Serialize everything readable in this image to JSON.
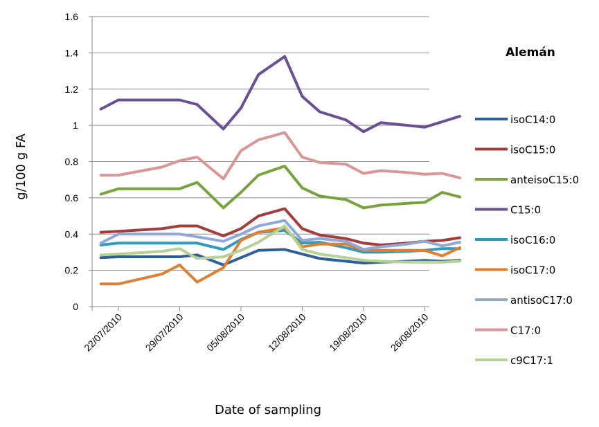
{
  "chart_data": {
    "type": "line",
    "title": "Alemán",
    "xlabel": "Date  of  sampling",
    "ylabel": "g/100 g FA",
    "ylim": [
      0,
      1.6
    ],
    "y_ticks": [
      "0",
      "0.2",
      "0.4",
      "0.6",
      "0.8",
      "1",
      "1.2",
      "1.4",
      "1.6"
    ],
    "x_tick_labels": [
      "22/07/2010",
      "29/07/2010",
      "05/08/2010",
      "12/08/2010",
      "19/08/2010",
      "26/08/2010"
    ],
    "x_dates": [
      "20/07/2010",
      "22/07/2010",
      "27/07/2010",
      "29/07/2010",
      "31/07/2010",
      "03/08/2010",
      "05/08/2010",
      "07/08/2010",
      "10/08/2010",
      "12/08/2010",
      "14/08/2010",
      "17/08/2010",
      "19/08/2010",
      "21/08/2010",
      "24/08/2010",
      "26/08/2010",
      "28/08/2010",
      "30/08/2010"
    ],
    "grid": "horizontal",
    "legend_position": "right",
    "series": [
      {
        "name": "isoC14:0",
        "color": "#2f5f9a",
        "values": [
          0.27,
          0.275,
          0.275,
          0.275,
          0.285,
          0.23,
          0.27,
          0.31,
          0.315,
          0.29,
          0.265,
          0.25,
          0.24,
          0.245,
          0.25,
          0.255,
          0.25,
          0.255
        ]
      },
      {
        "name": "isoC15:0",
        "color": "#a33d3b",
        "values": [
          0.41,
          0.415,
          0.43,
          0.445,
          0.445,
          0.39,
          0.43,
          0.5,
          0.54,
          0.43,
          0.395,
          0.375,
          0.35,
          0.34,
          0.35,
          0.36,
          0.365,
          0.38
        ]
      },
      {
        "name": "anteisoC15:0",
        "color": "#77a23d",
        "values": [
          0.62,
          0.65,
          0.65,
          0.65,
          0.685,
          0.545,
          0.63,
          0.725,
          0.775,
          0.655,
          0.61,
          0.59,
          0.545,
          0.56,
          0.57,
          0.575,
          0.63,
          0.605
        ]
      },
      {
        "name": "C15:0",
        "color": "#6a4f94",
        "values": [
          1.09,
          1.14,
          1.14,
          1.14,
          1.115,
          0.98,
          1.095,
          1.28,
          1.38,
          1.16,
          1.075,
          1.03,
          0.965,
          1.015,
          1.0,
          0.99,
          1.02,
          1.05
        ]
      },
      {
        "name": "isoC16:0",
        "color": "#2f9bbb",
        "values": [
          0.34,
          0.35,
          0.35,
          0.35,
          0.35,
          0.315,
          0.37,
          0.41,
          0.42,
          0.35,
          0.355,
          0.325,
          0.3,
          0.3,
          0.305,
          0.31,
          0.32,
          0.32
        ]
      },
      {
        "name": "isoC17:0",
        "color": "#e07f34",
        "values": [
          0.125,
          0.125,
          0.18,
          0.23,
          0.135,
          0.215,
          0.365,
          0.41,
          0.435,
          0.33,
          0.345,
          0.345,
          0.31,
          0.31,
          0.31,
          0.31,
          0.28,
          0.325
        ]
      },
      {
        "name": "antisoC17:0",
        "color": "#8fa8d8",
        "values": [
          0.35,
          0.4,
          0.4,
          0.4,
          0.385,
          0.36,
          0.4,
          0.445,
          0.475,
          0.365,
          0.375,
          0.36,
          0.315,
          0.33,
          0.345,
          0.36,
          0.335,
          0.355
        ]
      },
      {
        "name": "C17:0",
        "color": "#d99694",
        "values": [
          0.725,
          0.725,
          0.77,
          0.805,
          0.825,
          0.705,
          0.86,
          0.92,
          0.96,
          0.825,
          0.795,
          0.785,
          0.735,
          0.75,
          0.74,
          0.73,
          0.735,
          0.71
        ]
      },
      {
        "name": "c9C17:1",
        "color": "#b5d194",
        "values": [
          0.285,
          0.29,
          0.305,
          0.32,
          0.265,
          0.275,
          0.31,
          0.355,
          0.445,
          0.315,
          0.29,
          0.27,
          0.255,
          0.25,
          0.245,
          0.245,
          0.245,
          0.25
        ]
      }
    ]
  }
}
